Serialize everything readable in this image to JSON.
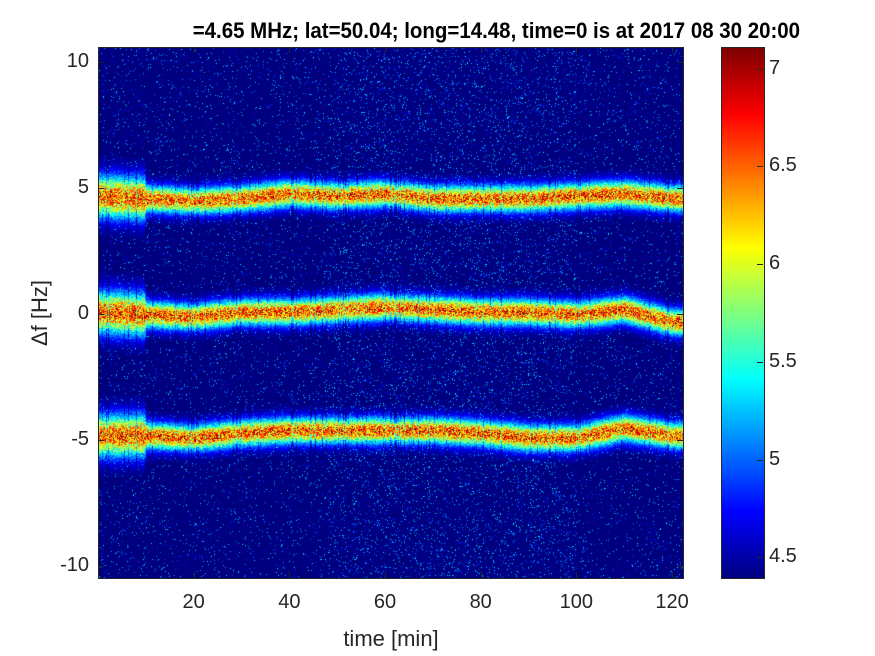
{
  "chart_data": {
    "type": "heatmap",
    "title": "=4.65 MHz;  lat=50.04; long=14.48, time=0 is at 2017 08 30 20:00",
    "xlabel": "time [min]",
    "ylabel": "Δf [Hz]",
    "xlim": [
      0,
      122.5
    ],
    "ylim": [
      -10.5,
      10.6
    ],
    "xticks": [
      20,
      40,
      60,
      80,
      100,
      120
    ],
    "xtick_labels": [
      "20",
      "40",
      "60",
      "80",
      "100",
      "120"
    ],
    "yticks": [
      10,
      5,
      0,
      -5,
      -10
    ],
    "ytick_labels": [
      "10",
      "5",
      "0",
      "-5",
      "-10"
    ],
    "colormap": "jet",
    "colorbar": {
      "clim": [
        4.4,
        7.11
      ],
      "ticks": [
        7,
        6.5,
        6,
        5.5,
        5,
        4.5
      ],
      "tick_labels": [
        "7",
        "6.5",
        "6",
        "5.5",
        "5",
        "4.5"
      ],
      "position": "right"
    },
    "bands": [
      {
        "time": [
          0,
          10,
          20,
          30,
          40,
          50,
          60,
          70,
          80,
          90,
          100,
          110,
          120
        ],
        "freq": [
          4.7,
          4.6,
          4.5,
          4.6,
          4.8,
          4.7,
          4.8,
          4.6,
          4.6,
          4.6,
          4.7,
          4.8,
          4.6
        ]
      },
      {
        "time": [
          0,
          10,
          20,
          30,
          40,
          50,
          60,
          70,
          80,
          90,
          100,
          110,
          120
        ],
        "freq": [
          0.1,
          0.0,
          -0.1,
          0.1,
          0.1,
          0.2,
          0.3,
          0.2,
          0.1,
          0.1,
          0.0,
          0.2,
          -0.3
        ]
      },
      {
        "time": [
          0,
          10,
          20,
          30,
          40,
          50,
          60,
          70,
          80,
          90,
          100,
          110,
          120
        ],
        "freq": [
          -4.8,
          -4.8,
          -4.9,
          -4.7,
          -4.6,
          -4.6,
          -4.6,
          -4.6,
          -4.7,
          -4.9,
          -4.9,
          -4.5,
          -4.8
        ]
      }
    ],
    "background_level": 4.4,
    "peak_level": 7.1
  }
}
